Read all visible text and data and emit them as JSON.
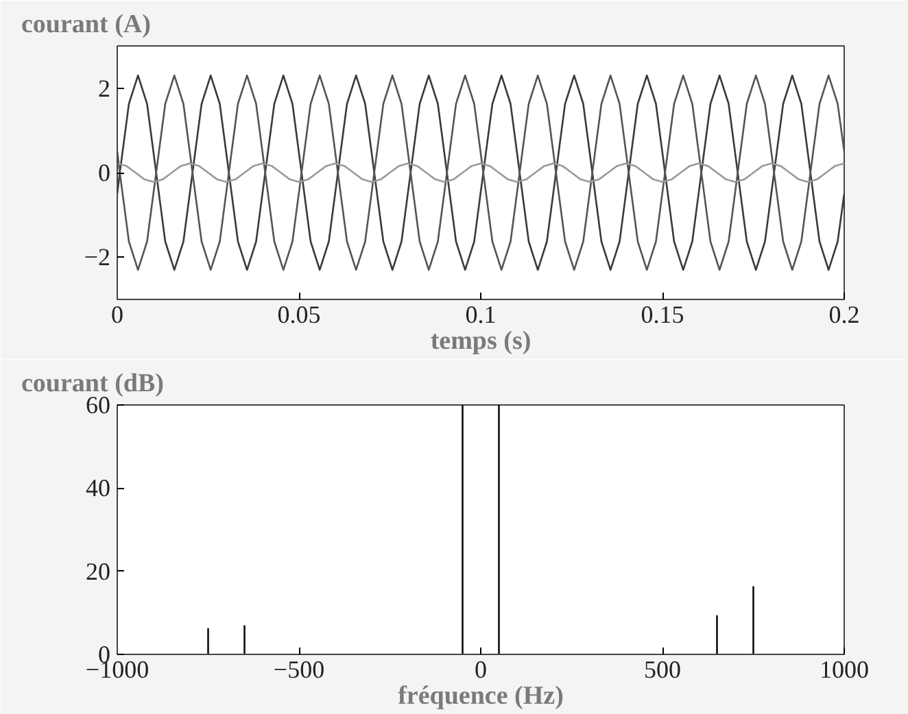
{
  "chart_data": [
    {
      "type": "line",
      "xlabel": "temps (s)",
      "ylabel": "courant (A)",
      "xlim": [
        0,
        0.2
      ],
      "ylim": [
        -3,
        3
      ],
      "xticks": [
        0,
        0.05,
        0.1,
        0.15,
        0.2
      ],
      "yticks": [
        -2,
        0,
        2
      ],
      "grid": false,
      "series": [
        {
          "color": "#3a3a3a",
          "x": [
            0,
            0.0007,
            0.0032,
            0.0057,
            0.0082,
            0.0107,
            0.0132,
            0.0157,
            0.0182,
            0.0207,
            0.0232,
            0.0257,
            0.0282,
            0.0307,
            0.0332,
            0.0357,
            0.0382,
            0.0407,
            0.0432,
            0.0457,
            0.0482,
            0.0507,
            0.0532,
            0.0557,
            0.0582,
            0.0607,
            0.0632,
            0.0657,
            0.0682,
            0.0707,
            0.0732,
            0.0757,
            0.0782,
            0.0807,
            0.0832,
            0.0857,
            0.0882,
            0.0907,
            0.0932,
            0.0957,
            0.0982,
            0.1007,
            0.1032,
            0.1057,
            0.1082,
            0.1107,
            0.1132,
            0.1157,
            0.1182,
            0.1207,
            0.1232,
            0.1257,
            0.1282,
            0.1307,
            0.1332,
            0.1357,
            0.1382,
            0.1407,
            0.1432,
            0.1457,
            0.1482,
            0.1507,
            0.1532,
            0.1557,
            0.1582,
            0.1607,
            0.1632,
            0.1657,
            0.1682,
            0.1707,
            0.1732,
            0.1757,
            0.1782,
            0.1807,
            0.1832,
            0.1857,
            0.1882,
            0.1907,
            0.1932,
            0.1957,
            0.1982,
            0.2
          ],
          "values": [
            -0.5,
            0,
            1.63,
            2.3,
            1.63,
            0,
            -1.63,
            -2.3,
            -1.63,
            0,
            1.63,
            2.3,
            1.63,
            0,
            -1.63,
            -2.3,
            -1.63,
            0,
            1.63,
            2.3,
            1.63,
            0,
            -1.63,
            -2.3,
            -1.63,
            0,
            1.63,
            2.3,
            1.63,
            0,
            -1.63,
            -2.3,
            -1.63,
            0,
            1.63,
            2.3,
            1.63,
            0,
            -1.63,
            -2.3,
            -1.63,
            0,
            1.63,
            2.3,
            1.63,
            0,
            -1.63,
            -2.3,
            -1.63,
            0,
            1.63,
            2.3,
            1.63,
            0,
            -1.63,
            -2.3,
            -1.63,
            0,
            1.63,
            2.3,
            1.63,
            0,
            -1.63,
            -2.3,
            -1.63,
            0,
            1.63,
            2.3,
            1.63,
            0,
            -1.63,
            -2.3,
            -1.63,
            0,
            1.63,
            2.3,
            1.63,
            0,
            -1.63,
            -2.3,
            -1.63,
            -0.5
          ]
        },
        {
          "color": "#555555",
          "x": [
            0,
            0.0007,
            0.0032,
            0.0057,
            0.0082,
            0.0107,
            0.0132,
            0.0157,
            0.0182,
            0.0207,
            0.0232,
            0.0257,
            0.0282,
            0.0307,
            0.0332,
            0.0357,
            0.0382,
            0.0407,
            0.0432,
            0.0457,
            0.0482,
            0.0507,
            0.0532,
            0.0557,
            0.0582,
            0.0607,
            0.0632,
            0.0657,
            0.0682,
            0.0707,
            0.0732,
            0.0757,
            0.0782,
            0.0807,
            0.0832,
            0.0857,
            0.0882,
            0.0907,
            0.0932,
            0.0957,
            0.0982,
            0.1007,
            0.1032,
            0.1057,
            0.1082,
            0.1107,
            0.1132,
            0.1157,
            0.1182,
            0.1207,
            0.1232,
            0.1257,
            0.1282,
            0.1307,
            0.1332,
            0.1357,
            0.1382,
            0.1407,
            0.1432,
            0.1457,
            0.1482,
            0.1507,
            0.1532,
            0.1557,
            0.1582,
            0.1607,
            0.1632,
            0.1657,
            0.1682,
            0.1707,
            0.1732,
            0.1757,
            0.1782,
            0.1807,
            0.1832,
            0.1857,
            0.1882,
            0.1907,
            0.1932,
            0.1957,
            0.1982,
            0.2
          ],
          "values": [
            0.5,
            0,
            -1.63,
            -2.3,
            -1.63,
            0,
            1.63,
            2.3,
            1.63,
            0,
            -1.63,
            -2.3,
            -1.63,
            0,
            1.63,
            2.3,
            1.63,
            0,
            -1.63,
            -2.3,
            -1.63,
            0,
            1.63,
            2.3,
            1.63,
            0,
            -1.63,
            -2.3,
            -1.63,
            0,
            1.63,
            2.3,
            1.63,
            0,
            -1.63,
            -2.3,
            -1.63,
            0,
            1.63,
            2.3,
            1.63,
            0,
            -1.63,
            -2.3,
            -1.63,
            0,
            1.63,
            2.3,
            1.63,
            0,
            -1.63,
            -2.3,
            -1.63,
            0,
            1.63,
            2.3,
            1.63,
            0,
            -1.63,
            -2.3,
            -1.63,
            0,
            1.63,
            2.3,
            1.63,
            0,
            -1.63,
            -2.3,
            -1.63,
            0,
            1.63,
            2.3,
            1.63,
            0,
            -1.63,
            -2.3,
            -1.63,
            0,
            1.63,
            2.3,
            1.63,
            0.5
          ]
        },
        {
          "color": "#9a9a9a",
          "x": [
            0,
            0.0025,
            0.005,
            0.0075,
            0.01,
            0.0125,
            0.015,
            0.0175,
            0.02,
            0.0225,
            0.025,
            0.0275,
            0.03,
            0.0325,
            0.035,
            0.0375,
            0.04,
            0.0425,
            0.045,
            0.0475,
            0.05,
            0.0525,
            0.055,
            0.0575,
            0.06,
            0.0625,
            0.065,
            0.0675,
            0.07,
            0.0725,
            0.075,
            0.0775,
            0.08,
            0.0825,
            0.085,
            0.0875,
            0.09,
            0.0925,
            0.095,
            0.0975,
            0.1,
            0.1025,
            0.105,
            0.1075,
            0.11,
            0.1125,
            0.115,
            0.1175,
            0.12,
            0.1225,
            0.125,
            0.1275,
            0.13,
            0.1325,
            0.135,
            0.1375,
            0.14,
            0.1425,
            0.145,
            0.1475,
            0.15,
            0.1525,
            0.155,
            0.1575,
            0.16,
            0.1625,
            0.165,
            0.1675,
            0.17,
            0.1725,
            0.175,
            0.1775,
            0.18,
            0.1825,
            0.185,
            0.1875,
            0.19,
            0.1925,
            0.195,
            0.1975,
            0.2
          ],
          "values": [
            0.22,
            0.16,
            0,
            -0.16,
            -0.22,
            -0.16,
            0,
            0.16,
            0.22,
            0.16,
            0,
            -0.16,
            -0.22,
            -0.16,
            0,
            0.16,
            0.22,
            0.16,
            0,
            -0.16,
            -0.22,
            -0.16,
            0,
            0.16,
            0.22,
            0.16,
            0,
            -0.16,
            -0.22,
            -0.16,
            0,
            0.16,
            0.22,
            0.16,
            0,
            -0.16,
            -0.22,
            -0.16,
            0,
            0.16,
            0.22,
            0.16,
            0,
            -0.16,
            -0.22,
            -0.16,
            0,
            0.16,
            0.22,
            0.16,
            0,
            -0.16,
            -0.22,
            -0.16,
            0,
            0.16,
            0.22,
            0.16,
            0,
            -0.16,
            -0.22,
            -0.16,
            0,
            0.16,
            0.22,
            0.16,
            0,
            -0.16,
            -0.22,
            -0.16,
            0,
            0.16,
            0.22,
            0.16,
            0,
            -0.16,
            -0.22,
            -0.16,
            0,
            0.16,
            0.22
          ]
        }
      ]
    },
    {
      "type": "bar",
      "xlabel": "fréquence (Hz)",
      "ylabel": "courant (dB)",
      "xlim": [
        -1000,
        1000
      ],
      "ylim": [
        0,
        60
      ],
      "xticks": [
        -1000,
        -500,
        0,
        500,
        1000
      ],
      "yticks": [
        0,
        20,
        40,
        60
      ],
      "grid": false,
      "x": [
        -750,
        -650,
        -50,
        50,
        650,
        750
      ],
      "values": [
        6.3,
        7,
        60,
        60,
        9.4,
        16.4
      ],
      "color": "#111111"
    }
  ]
}
